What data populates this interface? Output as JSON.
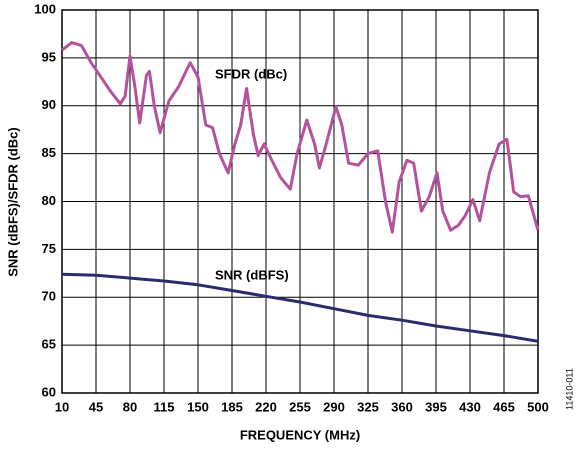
{
  "chart_data": {
    "type": "line",
    "x_label": "FREQUENCY (MHz)",
    "y_label": "SNR (dBFS)/SFDR (dBc)",
    "figure_id": "11410-011",
    "xlim": [
      10,
      500
    ],
    "xticks": [
      10,
      45,
      80,
      115,
      150,
      185,
      220,
      255,
      290,
      325,
      360,
      395,
      430,
      465,
      500
    ],
    "ylim": [
      60,
      100
    ],
    "yticks": [
      60,
      65,
      70,
      75,
      80,
      85,
      90,
      95,
      100
    ],
    "grid": true,
    "annotations": [
      "SFDR (dBc)",
      "SNR (dBFS)"
    ],
    "series": [
      {
        "color": "#b5519e",
        "x": [
          10,
          20,
          30,
          40,
          50,
          60,
          70,
          75,
          80,
          85,
          90,
          97,
          100,
          105,
          111,
          120,
          130,
          142,
          150,
          158,
          165,
          172,
          181,
          188,
          194,
          200,
          207,
          212,
          218,
          225,
          235,
          245,
          252,
          262,
          270,
          275,
          282,
          292,
          298,
          305,
          315,
          325,
          335,
          343,
          350,
          357,
          365,
          372,
          380,
          388,
          396,
          402,
          410,
          418,
          425,
          433,
          440,
          450,
          460,
          468,
          475,
          482,
          490,
          500
        ],
        "values": [
          95.8,
          96.6,
          96.3,
          94.5,
          93,
          91.5,
          90.2,
          91,
          95.2,
          92,
          88.2,
          93.2,
          93.6,
          90,
          87.2,
          90.5,
          92,
          94.5,
          93,
          88,
          87.7,
          85,
          83,
          86,
          88,
          91.8,
          87,
          84.8,
          86,
          84.5,
          82.5,
          81.3,
          85,
          88.5,
          86,
          83.5,
          86,
          89.9,
          88,
          84,
          83.8,
          85,
          85.3,
          80,
          76.8,
          82,
          84.3,
          84,
          79,
          80.5,
          83,
          79,
          77,
          77.5,
          78.5,
          80.2,
          78,
          83,
          86,
          86.5,
          81,
          80.5,
          80.6,
          77
        ]
      },
      {
        "color": "#2b2a6e",
        "x": [
          10,
          45,
          80,
          115,
          150,
          185,
          220,
          255,
          290,
          325,
          360,
          395,
          430,
          465,
          500
        ],
        "values": [
          72.4,
          72.3,
          72,
          71.7,
          71.3,
          70.7,
          70.1,
          69.5,
          68.8,
          68.1,
          67.6,
          67,
          66.5,
          66,
          65.4
        ]
      }
    ]
  }
}
